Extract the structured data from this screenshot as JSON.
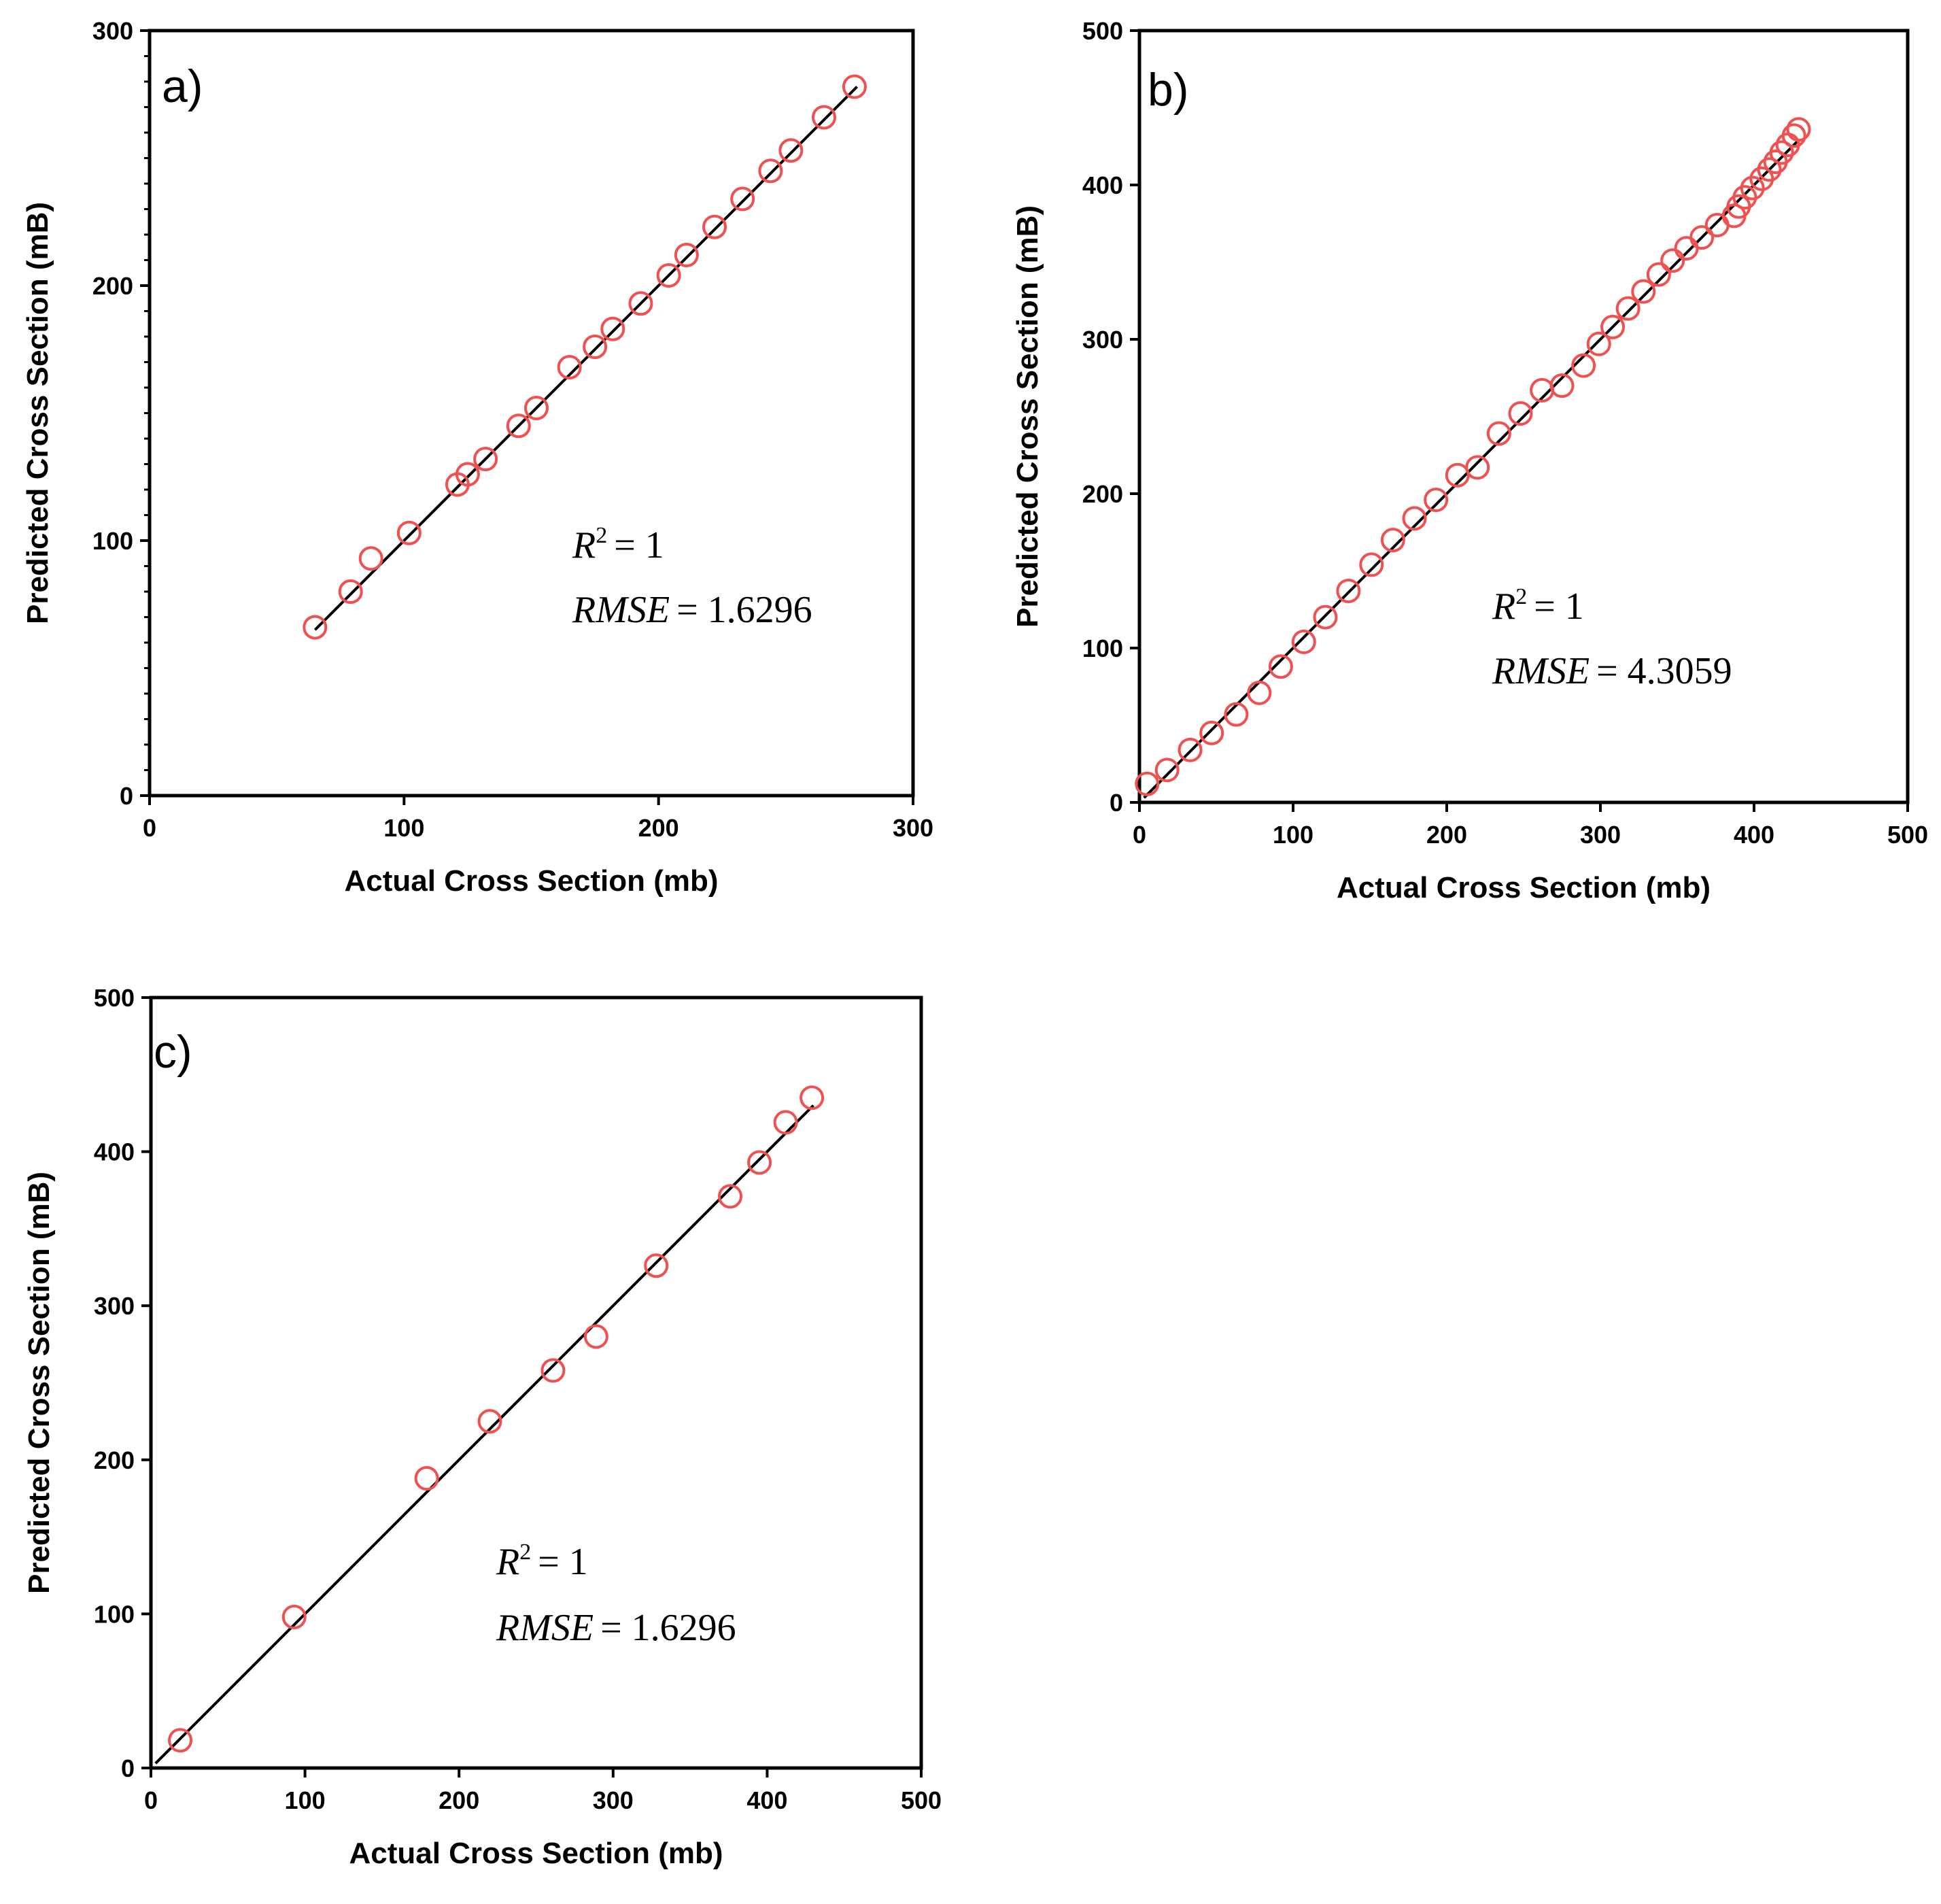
{
  "figure": {
    "description_colors": {
      "marker": "#f05050",
      "axes": "#000000",
      "fit_line": "#000000"
    }
  },
  "chart_data": [
    {
      "type": "scatter",
      "panel_label": "a)",
      "xlabel": "Actual Cross Section (mb)",
      "ylabel": "Predicted Cross Section (mB)",
      "xlim": [
        0,
        300
      ],
      "ylim": [
        0,
        300
      ],
      "x_ticks": [
        "0",
        "100",
        "200",
        "300"
      ],
      "y_ticks": [
        "0",
        "100",
        "200",
        "300"
      ],
      "fit_line": {
        "x": [
          65,
          278
        ],
        "y": [
          65,
          278
        ]
      },
      "stats": {
        "r2_label": "R",
        "r2_sup": "2",
        "r2_value": "= 1",
        "rmse_label": "RMSE",
        "rmse_value": "= 1.6296"
      },
      "points": {
        "x": [
          65,
          79,
          87,
          102,
          121,
          125,
          132,
          145,
          152,
          165,
          175,
          182,
          193,
          204,
          211,
          222,
          233,
          244,
          252,
          265,
          277
        ],
        "y": [
          66,
          80,
          93,
          103,
          122,
          126,
          132,
          145,
          152,
          168,
          176,
          183,
          193,
          204,
          212,
          223,
          234,
          245,
          253,
          266,
          278
        ]
      }
    },
    {
      "type": "scatter",
      "panel_label": "b)",
      "xlabel": "Actual Cross Section (mb)",
      "ylabel": "Predicted Cross Section (mB)",
      "xlim": [
        0,
        500
      ],
      "ylim": [
        0,
        500
      ],
      "x_ticks": [
        "0",
        "100",
        "200",
        "300",
        "400",
        "500"
      ],
      "y_ticks": [
        "0",
        "100",
        "200",
        "300",
        "400",
        "500"
      ],
      "fit_line": {
        "x": [
          3,
          428
        ],
        "y": [
          3,
          428
        ]
      },
      "stats": {
        "r2_label": "R",
        "r2_sup": "2",
        "r2_value": "= 1",
        "rmse_label": "RMSE",
        "rmse_value": "= 4.3059"
      },
      "points": {
        "x": [
          5,
          18,
          33,
          47,
          63,
          78,
          92,
          107,
          121,
          136,
          151,
          165,
          179,
          193,
          207,
          220,
          234,
          248,
          262,
          275,
          289,
          299,
          308,
          318,
          328,
          338,
          347,
          356,
          366,
          376,
          387,
          390,
          394,
          399,
          405,
          410,
          414,
          418,
          422,
          426,
          429
        ],
        "y": [
          12,
          21,
          34,
          45,
          57,
          71,
          88,
          104,
          120,
          137,
          154,
          170,
          184,
          196,
          212,
          217,
          239,
          252,
          267,
          270,
          283,
          297,
          308,
          320,
          331,
          342,
          351,
          359,
          366,
          374,
          380,
          386,
          392,
          398,
          404,
          410,
          415,
          421,
          426,
          432,
          436
        ]
      }
    },
    {
      "type": "scatter",
      "panel_label": "c)",
      "xlabel": "Actual Cross Section (mb)",
      "ylabel": "Predicted Cross Section (mB)",
      "xlim": [
        0,
        500
      ],
      "ylim": [
        0,
        500
      ],
      "x_ticks": [
        "0",
        "100",
        "200",
        "300",
        "400",
        "500"
      ],
      "y_ticks": [
        "0",
        "100",
        "200",
        "300",
        "400",
        "500"
      ],
      "fit_line": {
        "x": [
          3,
          430
        ],
        "y": [
          3,
          430
        ]
      },
      "stats": {
        "r2_label": "R",
        "r2_sup": "2",
        "r2_value": "= 1",
        "rmse_label": "RMSE",
        "rmse_value": "= 1.6296"
      },
      "points": {
        "x": [
          19,
          93,
          179,
          220,
          261,
          289,
          328,
          376,
          395,
          412,
          429
        ],
        "y": [
          18,
          98,
          188,
          225,
          258,
          280,
          326,
          371,
          393,
          419,
          435
        ]
      }
    }
  ]
}
